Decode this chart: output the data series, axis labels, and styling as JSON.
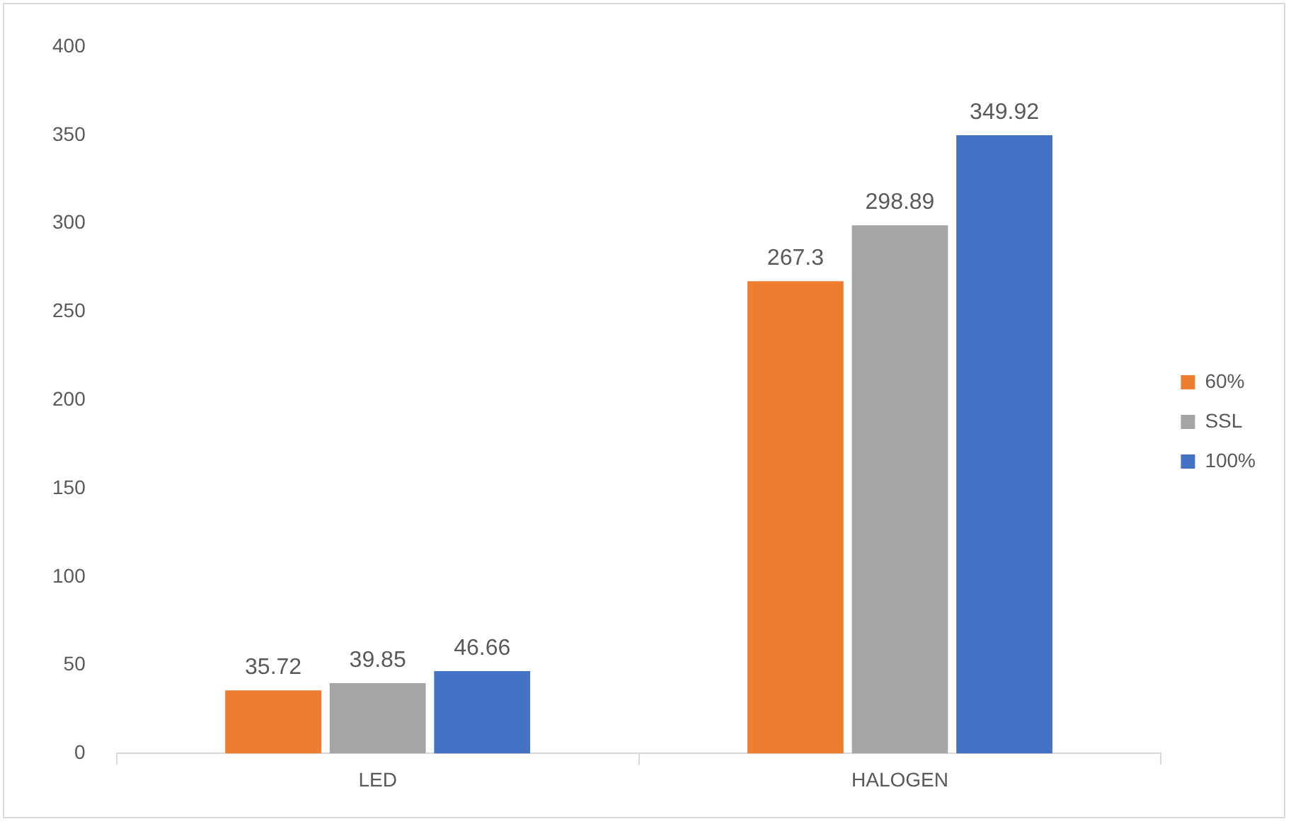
{
  "chart_data": {
    "type": "bar",
    "categories": [
      "LED",
      "HALOGEN"
    ],
    "series": [
      {
        "name": "60%",
        "color": "#ed7d31",
        "values": [
          35.72,
          267.3
        ]
      },
      {
        "name": "SSL",
        "color": "#a5a5a5",
        "values": [
          39.85,
          298.89
        ]
      },
      {
        "name": "100%",
        "color": "#4472c4",
        "values": [
          46.66,
          349.92
        ]
      }
    ],
    "ylim": [
      0,
      400
    ],
    "yticks": [
      0,
      50,
      100,
      150,
      200,
      250,
      300,
      350,
      400
    ],
    "grid": false,
    "legend": "right",
    "data_labels": true
  }
}
